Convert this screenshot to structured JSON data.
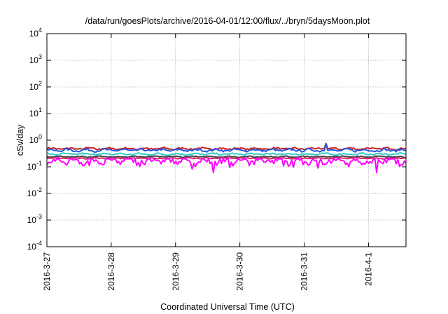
{
  "chart_data": {
    "type": "line",
    "title": "/data/run/goesPlots/archive/2016-04-01/12:00/flux/../bryn/5daysMoon.plot",
    "xlabel": "Coordinated Universal Time (UTC)",
    "ylabel": "cSv/day",
    "yscale": "log",
    "ylim": [
      0.0001,
      10000
    ],
    "xlim": [
      "2016-03-27",
      "2016-04-01 14:00"
    ],
    "grid": true,
    "y_ticks": [
      {
        "value": 0.0001,
        "base": "10",
        "exp": "-4"
      },
      {
        "value": 0.001,
        "base": "10",
        "exp": "-3"
      },
      {
        "value": 0.01,
        "base": "10",
        "exp": "-2"
      },
      {
        "value": 0.1,
        "base": "10",
        "exp": "-1"
      },
      {
        "value": 1,
        "base": "10",
        "exp": "0"
      },
      {
        "value": 10,
        "base": "10",
        "exp": "1"
      },
      {
        "value": 100,
        "base": "10",
        "exp": "2"
      },
      {
        "value": 1000,
        "base": "10",
        "exp": "3"
      },
      {
        "value": 10000,
        "base": "10",
        "exp": "4"
      }
    ],
    "x_ticks": [
      {
        "value": "2016-03-27",
        "label": "2016-3-27"
      },
      {
        "value": "2016-03-28",
        "label": "2016-3-28"
      },
      {
        "value": "2016-03-29",
        "label": "2016-3-29"
      },
      {
        "value": "2016-03-30",
        "label": "2016-3-30"
      },
      {
        "value": "2016-03-31",
        "label": "2016-3-31"
      },
      {
        "value": "2016-04-01",
        "label": "2016-4-1"
      }
    ],
    "series": [
      {
        "color": "#cc2222",
        "typical": 0.48,
        "min": 0.4,
        "max": 0.58
      },
      {
        "color": "#2255dd",
        "typical": 0.42,
        "min": 0.33,
        "max": 0.52
      },
      {
        "color": "#33cccc",
        "typical": 0.3,
        "min": 0.26,
        "max": 0.36
      },
      {
        "color": "#444444",
        "typical": 0.24,
        "min": 0.22,
        "max": 0.27
      },
      {
        "color": "#dd2277",
        "typical": 0.21,
        "min": 0.19,
        "max": 0.23
      },
      {
        "color": "#ff00ff",
        "typical": 0.17,
        "min": 0.05,
        "max": 0.2
      }
    ],
    "dips": [
      {
        "x": "2016-03-28 02:00",
        "y": 0.05
      },
      {
        "x": "2016-03-29 14:00",
        "y": 0.06
      },
      {
        "x": "2016-03-31 05:00",
        "y": 0.09
      },
      {
        "x": "2016-04-01 03:00",
        "y": 0.06
      }
    ],
    "spikes": [
      {
        "x": "2016-03-31 08:00",
        "y": 0.75
      }
    ]
  }
}
